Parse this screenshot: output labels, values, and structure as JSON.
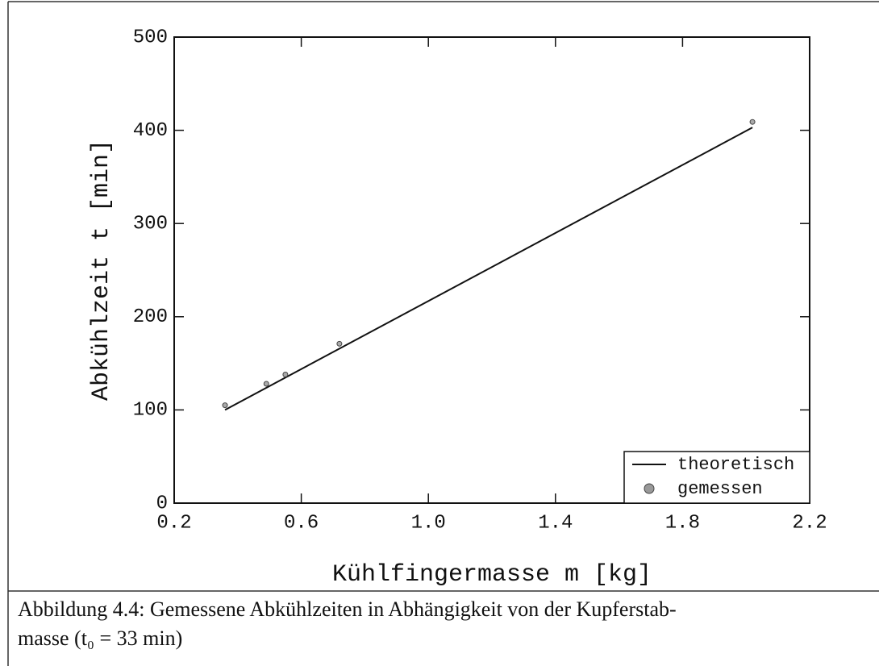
{
  "chart_data": {
    "type": "scatter",
    "x_label": "Kühlfingermasse m [kg]",
    "y_label": "Abkühlzeit t [min]",
    "series": [
      {
        "name": "theoretisch",
        "kind": "line",
        "color": "#111111",
        "x": [
          0.36,
          2.02
        ],
        "values": [
          100,
          403
        ]
      },
      {
        "name": "gemessen",
        "kind": "points",
        "color": "#444444",
        "x": [
          0.36,
          0.49,
          0.55,
          0.72,
          2.02
        ],
        "values": [
          105,
          128,
          138,
          171,
          409
        ]
      }
    ],
    "xlim": [
      0.2,
      2.2
    ],
    "xticks": [
      0.2,
      0.6,
      {
        "value": 1,
        "label": "1.0"
      },
      1.4,
      1.8,
      2.2
    ],
    "ylim": [
      0,
      500
    ],
    "yticks": [
      0,
      100,
      200,
      300,
      400,
      500
    ],
    "legend": "lower right",
    "caption": [
      "Abbildung 4.4: Gemessene Abkühlzeiten in Abhängigkeit von der Kupferstab-",
      "masse (t₀ = 33 min)"
    ]
  }
}
